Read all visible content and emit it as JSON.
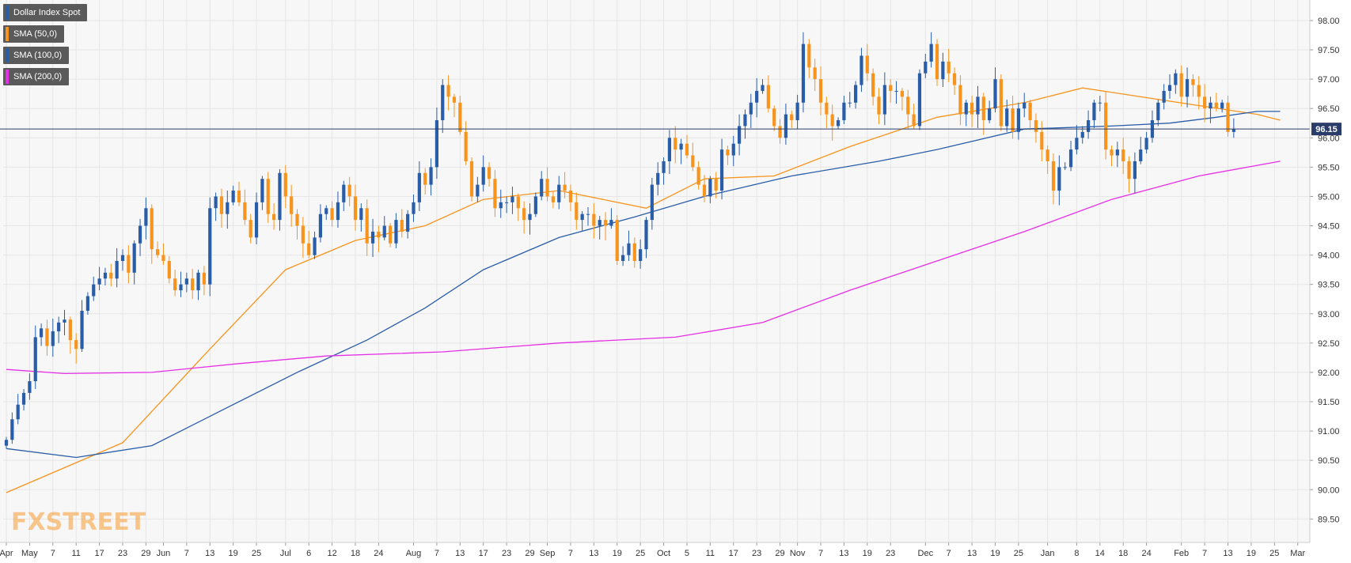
{
  "colors": {
    "up": "#2a5da8",
    "down": "#f7941d",
    "sma50": "#f7941d",
    "sma100": "#2a5da8",
    "sma200": "#e62ee6",
    "grid": "#e6e6e6",
    "price_line": "#2a3d6a",
    "price_label_bg": "#2a3d6a",
    "background": "#f7f7f7"
  },
  "legend": [
    {
      "label": "Dollar Index Spot",
      "color": "#2a5da8"
    },
    {
      "label": "SMA (50,0)",
      "color": "#f7941d"
    },
    {
      "label": "SMA (100,0)",
      "color": "#2a5da8"
    },
    {
      "label": "SMA (200,0)",
      "color": "#e62ee6"
    }
  ],
  "watermark": "FXSTREET",
  "chart_data": {
    "type": "candlestick",
    "title": "Dollar Index Spot",
    "last_price": "96.15",
    "ylim": [
      89.1,
      98.35
    ],
    "yticks": [
      "89.50",
      "90.00",
      "90.50",
      "91.00",
      "91.50",
      "92.00",
      "92.50",
      "93.00",
      "93.50",
      "94.00",
      "94.50",
      "95.00",
      "95.50",
      "96.00",
      "96.50",
      "97.00",
      "97.50",
      "98.00"
    ],
    "xticks": [
      {
        "label": "Apr",
        "bar": 0
      },
      {
        "label": "May",
        "bar": 4
      },
      {
        "label": "7",
        "bar": 8
      },
      {
        "label": "11",
        "bar": 12
      },
      {
        "label": "17",
        "bar": 16
      },
      {
        "label": "23",
        "bar": 20
      },
      {
        "label": "29",
        "bar": 24
      },
      {
        "label": "Jun",
        "bar": 27
      },
      {
        "label": "7",
        "bar": 31
      },
      {
        "label": "13",
        "bar": 35
      },
      {
        "label": "19",
        "bar": 39
      },
      {
        "label": "25",
        "bar": 43
      },
      {
        "label": "Jul",
        "bar": 48
      },
      {
        "label": "6",
        "bar": 52
      },
      {
        "label": "12",
        "bar": 56
      },
      {
        "label": "18",
        "bar": 60
      },
      {
        "label": "24",
        "bar": 64
      },
      {
        "label": "Aug",
        "bar": 70
      },
      {
        "label": "7",
        "bar": 74
      },
      {
        "label": "13",
        "bar": 78
      },
      {
        "label": "17",
        "bar": 82
      },
      {
        "label": "23",
        "bar": 86
      },
      {
        "label": "29",
        "bar": 90
      },
      {
        "label": "Sep",
        "bar": 93
      },
      {
        "label": "7",
        "bar": 97
      },
      {
        "label": "13",
        "bar": 101
      },
      {
        "label": "19",
        "bar": 105
      },
      {
        "label": "25",
        "bar": 109
      },
      {
        "label": "Oct",
        "bar": 113
      },
      {
        "label": "5",
        "bar": 117
      },
      {
        "label": "11",
        "bar": 121
      },
      {
        "label": "17",
        "bar": 125
      },
      {
        "label": "23",
        "bar": 129
      },
      {
        "label": "29",
        "bar": 133
      },
      {
        "label": "Nov",
        "bar": 136
      },
      {
        "label": "7",
        "bar": 140
      },
      {
        "label": "13",
        "bar": 144
      },
      {
        "label": "19",
        "bar": 148
      },
      {
        "label": "23",
        "bar": 152
      },
      {
        "label": "Dec",
        "bar": 158
      },
      {
        "label": "7",
        "bar": 162
      },
      {
        "label": "13",
        "bar": 166
      },
      {
        "label": "19",
        "bar": 170
      },
      {
        "label": "25",
        "bar": 174
      },
      {
        "label": "Jan",
        "bar": 179
      },
      {
        "label": "8",
        "bar": 184
      },
      {
        "label": "14",
        "bar": 188
      },
      {
        "label": "18",
        "bar": 192
      },
      {
        "label": "24",
        "bar": 196
      },
      {
        "label": "Feb",
        "bar": 202
      },
      {
        "label": "7",
        "bar": 206
      },
      {
        "label": "13",
        "bar": 210
      },
      {
        "label": "19",
        "bar": 214
      },
      {
        "label": "25",
        "bar": 218
      },
      {
        "label": "Mar",
        "bar": 222
      }
    ],
    "closes": [
      90.85,
      91.2,
      91.45,
      91.65,
      91.85,
      92.6,
      92.75,
      92.45,
      92.7,
      92.85,
      92.9,
      92.55,
      92.4,
      93.05,
      93.3,
      93.5,
      93.6,
      93.7,
      93.6,
      93.9,
      94.0,
      93.7,
      94.2,
      94.5,
      94.8,
      94.1,
      94.0,
      93.9,
      93.6,
      93.4,
      93.5,
      93.6,
      93.4,
      93.7,
      93.5,
      94.8,
      95.0,
      94.7,
      94.9,
      95.1,
      94.9,
      94.6,
      94.3,
      94.9,
      95.3,
      94.7,
      94.6,
      95.4,
      95.0,
      94.7,
      94.5,
      94.2,
      94.0,
      94.3,
      94.7,
      94.8,
      94.6,
      94.9,
      95.2,
      95.0,
      94.6,
      94.8,
      94.2,
      94.4,
      94.3,
      94.5,
      94.2,
      94.6,
      94.4,
      94.7,
      94.9,
      95.4,
      95.2,
      95.5,
      96.3,
      96.9,
      96.7,
      96.6,
      96.1,
      95.6,
      95.0,
      95.2,
      95.5,
      95.3,
      94.8,
      94.9,
      94.9,
      95.0,
      94.8,
      94.6,
      94.7,
      95.0,
      95.3,
      95.0,
      94.9,
      95.2,
      95.1,
      94.9,
      94.6,
      94.7,
      94.7,
      94.5,
      94.6,
      94.5,
      94.6,
      93.9,
      94.0,
      94.2,
      93.9,
      94.1,
      94.6,
      95.2,
      95.4,
      95.6,
      96.0,
      95.8,
      95.9,
      95.7,
      95.5,
      95.2,
      95.0,
      95.3,
      95.1,
      95.8,
      95.7,
      95.9,
      96.2,
      96.4,
      96.6,
      96.8,
      96.9,
      96.5,
      96.2,
      96.0,
      96.4,
      96.3,
      96.6,
      97.6,
      97.2,
      97.0,
      96.6,
      96.4,
      96.2,
      96.3,
      96.6,
      96.6,
      96.9,
      97.4,
      97.1,
      96.7,
      96.4,
      96.9,
      96.8,
      96.8,
      96.7,
      96.4,
      96.2,
      97.1,
      97.3,
      97.6,
      97.0,
      97.3,
      97.1,
      96.9,
      96.4,
      96.6,
      96.4,
      96.7,
      96.3,
      96.5,
      97.0,
      96.2,
      96.5,
      96.1,
      96.5,
      96.6,
      96.3,
      96.1,
      95.8,
      95.6,
      95.1,
      95.5,
      95.5,
      95.8,
      96.0,
      96.1,
      96.3,
      96.6,
      96.6,
      95.8,
      95.7,
      95.8,
      95.6,
      95.3,
      95.6,
      95.8,
      96.0,
      96.3,
      96.6,
      96.8,
      96.9,
      97.1,
      96.7,
      97.0,
      96.9,
      96.7,
      96.5,
      96.6,
      96.5,
      96.6,
      96.1,
      96.15
    ],
    "series": [
      {
        "name": "SMA (50,0)",
        "color_key": "sma50",
        "points": [
          [
            0,
            89.95
          ],
          [
            20,
            90.8
          ],
          [
            35,
            92.4
          ],
          [
            48,
            93.75
          ],
          [
            60,
            94.25
          ],
          [
            72,
            94.5
          ],
          [
            82,
            94.95
          ],
          [
            95,
            95.1
          ],
          [
            110,
            94.8
          ],
          [
            120,
            95.3
          ],
          [
            132,
            95.35
          ],
          [
            145,
            95.85
          ],
          [
            160,
            96.35
          ],
          [
            175,
            96.6
          ],
          [
            185,
            96.85
          ],
          [
            195,
            96.7
          ],
          [
            205,
            96.55
          ],
          [
            215,
            96.4
          ],
          [
            219,
            96.3
          ]
        ]
      },
      {
        "name": "SMA (100,0)",
        "color_key": "sma100",
        "points": [
          [
            0,
            90.7
          ],
          [
            12,
            90.55
          ],
          [
            25,
            90.75
          ],
          [
            37,
            91.35
          ],
          [
            50,
            92.0
          ],
          [
            62,
            92.55
          ],
          [
            72,
            93.1
          ],
          [
            82,
            93.75
          ],
          [
            95,
            94.3
          ],
          [
            108,
            94.65
          ],
          [
            120,
            95.0
          ],
          [
            135,
            95.35
          ],
          [
            150,
            95.6
          ],
          [
            160,
            95.8
          ],
          [
            175,
            96.15
          ],
          [
            190,
            96.2
          ],
          [
            200,
            96.25
          ],
          [
            208,
            96.35
          ],
          [
            215,
            96.45
          ],
          [
            219,
            96.45
          ]
        ]
      },
      {
        "name": "SMA (200,0)",
        "color_key": "sma200",
        "points": [
          [
            0,
            92.05
          ],
          [
            10,
            91.98
          ],
          [
            25,
            92.0
          ],
          [
            40,
            92.15
          ],
          [
            55,
            92.28
          ],
          [
            75,
            92.35
          ],
          [
            95,
            92.5
          ],
          [
            115,
            92.6
          ],
          [
            130,
            92.85
          ],
          [
            145,
            93.4
          ],
          [
            160,
            93.9
          ],
          [
            175,
            94.4
          ],
          [
            190,
            94.95
          ],
          [
            205,
            95.35
          ],
          [
            219,
            95.6
          ]
        ]
      }
    ]
  }
}
